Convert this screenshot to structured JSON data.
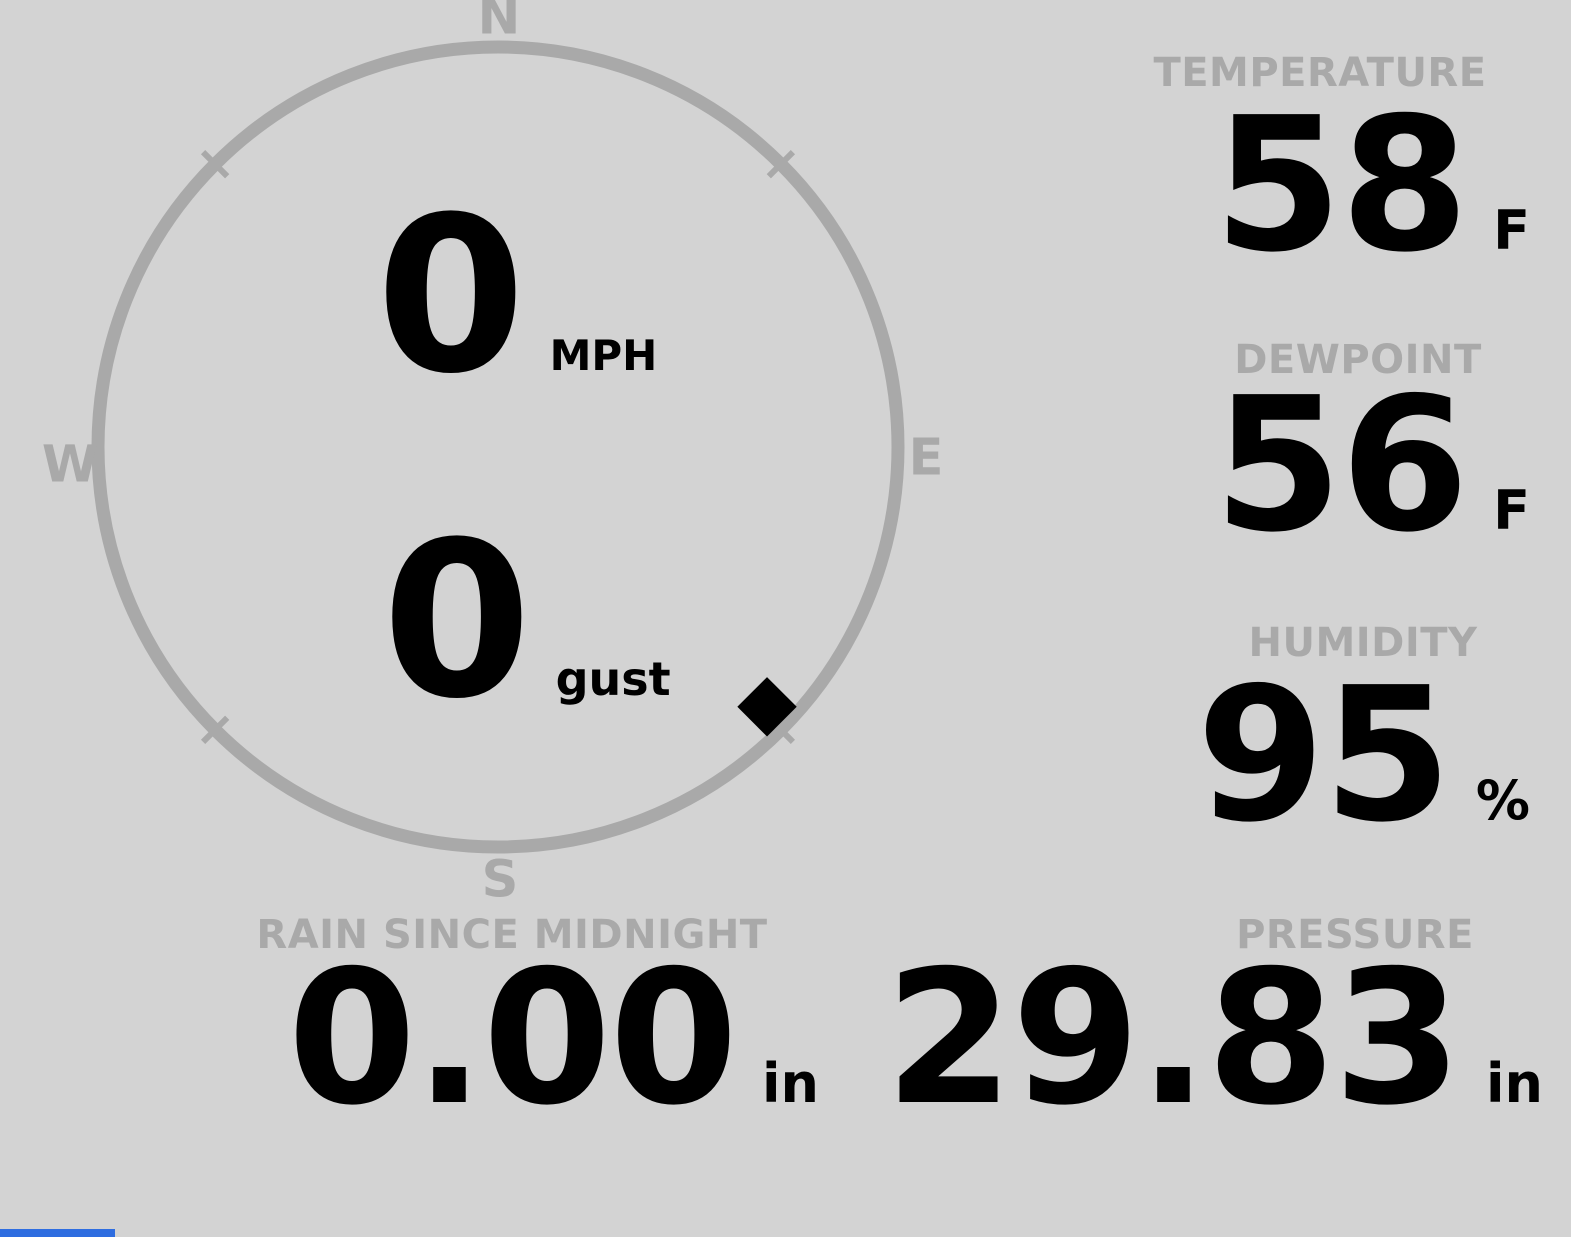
{
  "theme": {
    "background": "#d3d3d3",
    "muted": "#a9a9a9",
    "text": "#000000",
    "accent_bar": "#2e6de0"
  },
  "compass": {
    "north": "N",
    "east": "E",
    "south": "S",
    "west": "W",
    "direction_deg": 134,
    "wind": {
      "speed": "0",
      "speed_unit": "MPH",
      "gust": "0",
      "gust_unit": "gust"
    }
  },
  "metrics": {
    "temperature": {
      "label": "TEMPERATURE",
      "value": "58",
      "unit": "F"
    },
    "dewpoint": {
      "label": "DEWPOINT",
      "value": "56",
      "unit": "F"
    },
    "humidity": {
      "label": "HUMIDITY",
      "value": "95",
      "unit": "%"
    },
    "rain": {
      "label": "RAIN SINCE MIDNIGHT",
      "value": "0.00",
      "unit": "in"
    },
    "pressure": {
      "label": "PRESSURE",
      "value": "29.83",
      "unit": "in"
    }
  }
}
